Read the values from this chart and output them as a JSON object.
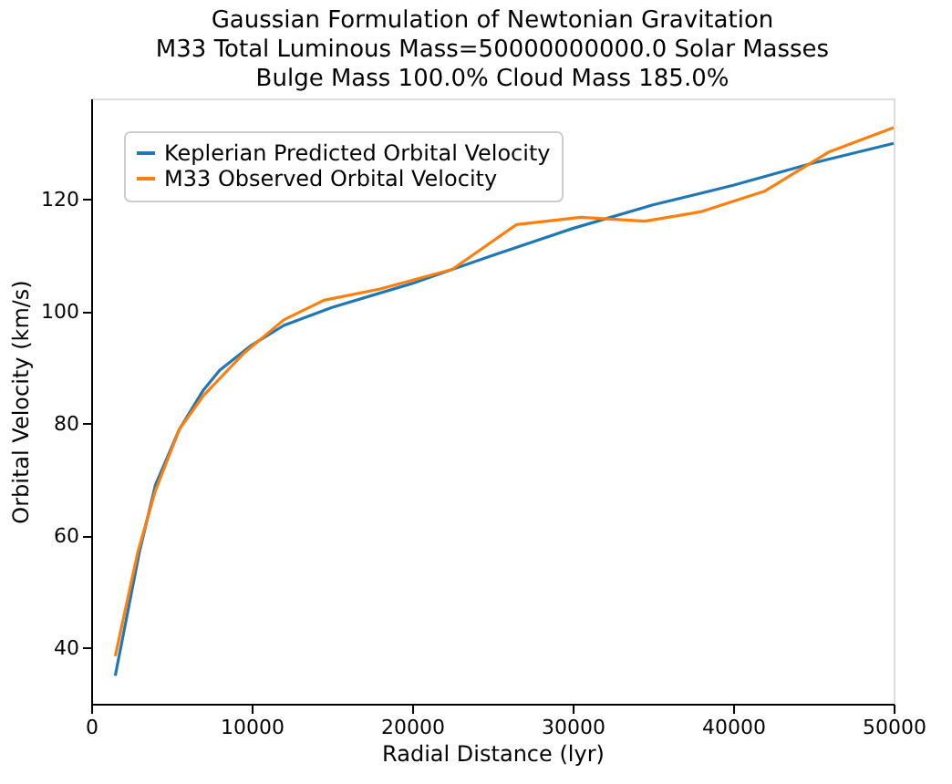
{
  "chart_data": {
    "type": "line",
    "title": "Gaussian Formulation of Newtonian Gravitation",
    "subtitle": [
      "M33 Total Luminous Mass=50000000000.0 Solar Masses",
      "Bulge Mass 100.0% Cloud Mass 185.0%"
    ],
    "xlabel": "Radial Distance (lyr)",
    "ylabel": "Orbital Velocity (km/s)",
    "xlim": [
      0,
      50000
    ],
    "xticks": [
      0,
      10000,
      20000,
      30000,
      40000,
      50000
    ],
    "ylim": [
      30,
      138
    ],
    "yticks": [
      40,
      60,
      80,
      100,
      120
    ],
    "grid": false,
    "legend": "top left",
    "series": [
      {
        "name": "Keplerian Predicted Orbital Velocity",
        "color": "#1f77b4",
        "x": [
          1500,
          3000,
          4000,
          5500,
          7000,
          8000,
          10000,
          12000,
          15000,
          20000,
          25000,
          30000,
          35000,
          40000,
          45000,
          50000
        ],
        "values": [
          35,
          57,
          69,
          79,
          86,
          89.5,
          94,
          97.5,
          100.7,
          105,
          110,
          114.8,
          119,
          122.5,
          126.5,
          130
        ]
      },
      {
        "name": "M33 Observed Orbital Velocity",
        "color": "#ff7f0e",
        "x": [
          1500,
          2900,
          4000,
          5500,
          7000,
          9500,
          12000,
          14500,
          18000,
          22500,
          26500,
          30500,
          34500,
          38000,
          42000,
          46000,
          50000
        ],
        "values": [
          38.5,
          57,
          68,
          79,
          85,
          92.5,
          98.5,
          102,
          104,
          107.5,
          115.5,
          116.8,
          116.1,
          117.8,
          121.5,
          128.5,
          132.8
        ]
      }
    ]
  }
}
